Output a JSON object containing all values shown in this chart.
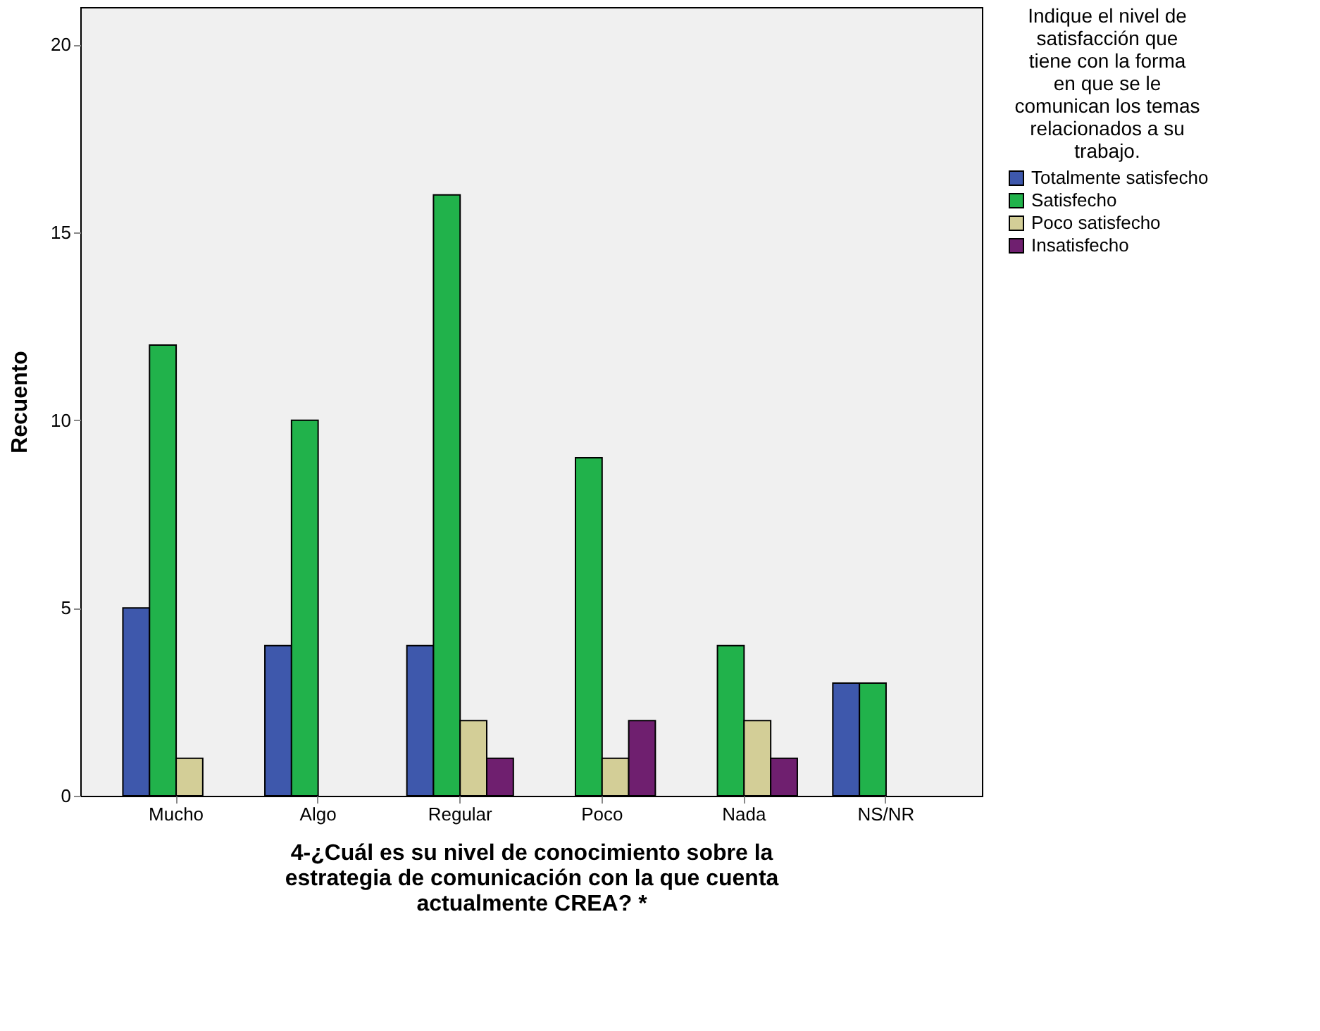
{
  "chart_data": {
    "type": "bar",
    "xlabel": "4-¿Cuál es su nivel de conocimiento sobre la estrategia de comunicación con la que cuenta actualmente CREA? *",
    "ylabel": "Recuento",
    "legend_title": "Indique el nivel de satisfacción que tiene con la forma en que se le comunican los temas relacionados a su trabajo.",
    "categories": [
      "Mucho",
      "Algo",
      "Regular",
      "Poco",
      "Nada",
      "NS/NR"
    ],
    "series": [
      {
        "name": "Totalmente satisfecho",
        "color": "#3e58ac",
        "values": [
          5,
          4,
          4,
          null,
          null,
          3
        ]
      },
      {
        "name": "Satisfecho",
        "color": "#21b24b",
        "values": [
          12,
          10,
          16,
          9,
          4,
          3
        ]
      },
      {
        "name": "Poco satisfecho",
        "color": "#d3ce97",
        "values": [
          1,
          null,
          2,
          1,
          2,
          null
        ]
      },
      {
        "name": "Insatisfecho",
        "color": "#6f1f6f",
        "values": [
          null,
          null,
          1,
          2,
          1,
          null
        ]
      }
    ],
    "ylim": [
      0,
      21
    ],
    "yticks": [
      0,
      5,
      10,
      15,
      20
    ],
    "grid": false,
    "legend": "top right"
  }
}
